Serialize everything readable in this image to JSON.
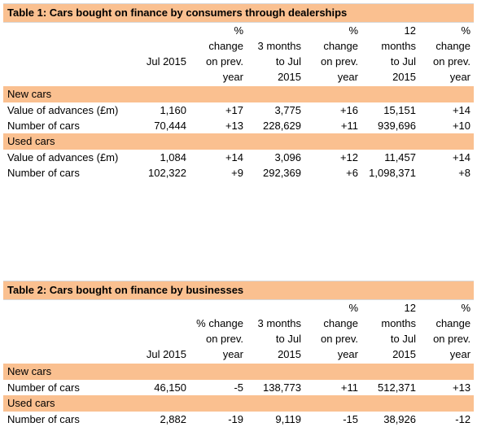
{
  "table1": {
    "title": "Table 1: Cars bought on finance by consumers through dealerships",
    "headers": [
      [
        "",
        "",
        "%",
        "",
        "%",
        "12",
        "%"
      ],
      [
        "",
        "",
        "change",
        "3 months",
        "change",
        "months",
        "change"
      ],
      [
        "",
        "Jul 2015",
        "on prev.",
        "to Jul",
        "on prev.",
        "to Jul",
        "on prev."
      ],
      [
        "",
        "",
        "year",
        "2015",
        "year",
        "2015",
        "year"
      ]
    ],
    "sections": [
      {
        "label": "New cars",
        "rows": [
          [
            "Value of advances (£m)",
            "1,160",
            "+17",
            "3,775",
            "+16",
            "15,151",
            "+14"
          ],
          [
            "Number of cars",
            "70,444",
            "+13",
            "228,629",
            "+11",
            "939,696",
            "+10"
          ]
        ]
      },
      {
        "label": "Used cars",
        "rows": [
          [
            "Value of advances (£m)",
            "1,084",
            "+14",
            "3,096",
            "+12",
            "11,457",
            "+14"
          ],
          [
            "Number of cars",
            "102,322",
            "+9",
            "292,369",
            "+6",
            "1,098,371",
            "+8"
          ]
        ]
      }
    ]
  },
  "table2": {
    "title": "Table 2: Cars bought on finance by businesses",
    "headers": [
      [
        "",
        "",
        "",
        "",
        "%",
        "12",
        "%"
      ],
      [
        "",
        "",
        "% change",
        "3 months",
        "change",
        "months",
        "change"
      ],
      [
        "",
        "",
        "on prev.",
        "to Jul",
        "on prev.",
        "to Jul",
        "on prev."
      ],
      [
        "",
        "Jul 2015",
        "year",
        "2015",
        "year",
        "2015",
        "year"
      ]
    ],
    "sections": [
      {
        "label": "New cars",
        "rows": [
          [
            "Number of cars",
            "46,150",
            "-5",
            "138,773",
            "+11",
            "512,371",
            "+13"
          ]
        ]
      },
      {
        "label": "Used cars",
        "rows": [
          [
            "Number of cars",
            "2,882",
            "-19",
            "9,119",
            "-15",
            "38,926",
            "-12"
          ]
        ]
      }
    ]
  },
  "colors": {
    "title_bg": "#fac090",
    "section_bg": "#fac090"
  }
}
